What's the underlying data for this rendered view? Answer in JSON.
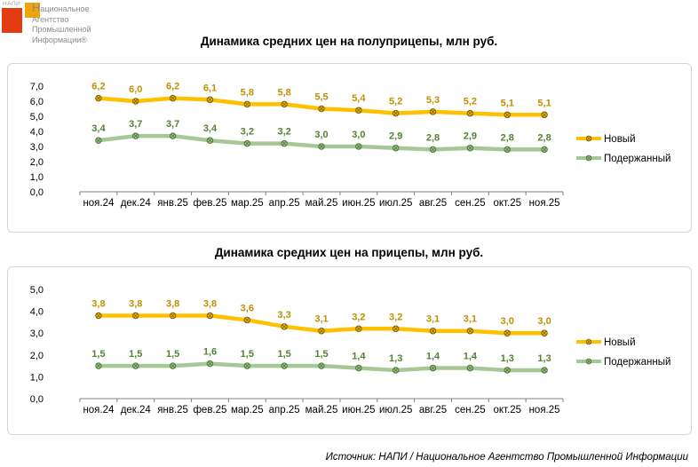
{
  "logo": {
    "mini_label": "НАПИ",
    "lines": [
      "Национальное",
      "Агентство",
      "Промышленной",
      "Информации®"
    ],
    "red_color": "#E53B13",
    "yellow_color": "#F0A40B",
    "text_color": "#8C8C8C"
  },
  "chart_data": [
    {
      "type": "line",
      "title": "Динамика средних цен на полуприцепы, млн руб.",
      "categories": [
        "ноя.24",
        "дек.24",
        "янв.25",
        "фев.25",
        "мар.25",
        "апр.25",
        "май.25",
        "июн.25",
        "июл.25",
        "авг.25",
        "сен.25",
        "окт.25",
        "ноя.25"
      ],
      "series": [
        {
          "name": "Новый",
          "color": "#FFC000",
          "label_color": "#BF9000",
          "marker_stroke": "#7F6000",
          "values": [
            6.2,
            6.0,
            6.2,
            6.1,
            5.8,
            5.8,
            5.5,
            5.4,
            5.2,
            5.3,
            5.2,
            5.1,
            5.1
          ]
        },
        {
          "name": "Подержанный",
          "color": "#A6C896",
          "label_color": "#538135",
          "marker_stroke": "#4F7A38",
          "values": [
            3.4,
            3.7,
            3.7,
            3.4,
            3.2,
            3.2,
            3.0,
            3.0,
            2.9,
            2.8,
            2.9,
            2.8,
            2.8
          ]
        }
      ],
      "ylim": [
        0,
        7
      ],
      "ytick_step": 1,
      "grid": false,
      "legend_position": "right",
      "xlabel": "",
      "ylabel": ""
    },
    {
      "type": "line",
      "title": "Динамика средних цен на прицепы, млн руб.",
      "categories": [
        "ноя.24",
        "дек.24",
        "янв.25",
        "фев.25",
        "мар.25",
        "апр.25",
        "май.25",
        "июн.25",
        "июл.25",
        "авг.25",
        "сен.25",
        "окт.25",
        "ноя.25"
      ],
      "series": [
        {
          "name": "Новый",
          "color": "#FFC000",
          "label_color": "#BF9000",
          "marker_stroke": "#7F6000",
          "values": [
            3.8,
            3.8,
            3.8,
            3.8,
            3.6,
            3.3,
            3.1,
            3.2,
            3.2,
            3.1,
            3.1,
            3.0,
            3.0
          ]
        },
        {
          "name": "Подержанный",
          "color": "#A6C896",
          "label_color": "#538135",
          "marker_stroke": "#4F7A38",
          "values": [
            1.5,
            1.5,
            1.5,
            1.6,
            1.5,
            1.5,
            1.5,
            1.4,
            1.3,
            1.4,
            1.4,
            1.3,
            1.3
          ]
        }
      ],
      "ylim": [
        0,
        5
      ],
      "ytick_step": 1,
      "grid": false,
      "legend_position": "right",
      "xlabel": "",
      "ylabel": ""
    }
  ],
  "source_text": "Источник: НАПИ / Национальное Агентство Промышленной Информации"
}
